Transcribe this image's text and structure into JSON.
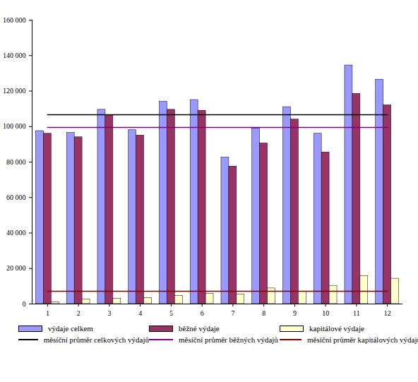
{
  "chart_data": {
    "type": "bar",
    "categories": [
      "1",
      "2",
      "3",
      "4",
      "5",
      "6",
      "7",
      "8",
      "9",
      "10",
      "11",
      "12"
    ],
    "series": [
      {
        "name": "výdaje celkem",
        "type": "bar",
        "color": "#9999ff",
        "values": [
          97500,
          96500,
          109500,
          98000,
          114000,
          115000,
          82500,
          99000,
          111000,
          96000,
          134500,
          126500
        ]
      },
      {
        "name": "běžné výdaje",
        "type": "bar",
        "color": "#993366",
        "values": [
          96000,
          94000,
          106500,
          95000,
          109500,
          109000,
          77500,
          90500,
          104000,
          85500,
          118500,
          112000
        ]
      },
      {
        "name": "kapitálové výdaje",
        "type": "bar",
        "color": "#ffffcc",
        "values": [
          1000,
          2500,
          3000,
          3300,
          4500,
          5800,
          5300,
          8800,
          7000,
          10300,
          15800,
          14300
        ]
      },
      {
        "name": "měsíční průměr celkových výdajů",
        "type": "line",
        "color": "#000000",
        "values": [
          106700,
          106700,
          106700,
          106700,
          106700,
          106700,
          106700,
          106700,
          106700,
          106700,
          106700,
          106700
        ]
      },
      {
        "name": "měsíční průměr běžných výdajů",
        "type": "line",
        "color": "#800080",
        "values": [
          99500,
          99500,
          99500,
          99500,
          99500,
          99500,
          99500,
          99500,
          99500,
          99500,
          99500,
          99500
        ]
      },
      {
        "name": "měsíční průměr kapitálových výdajů",
        "type": "line",
        "color": "#800000",
        "values": [
          7200,
          7200,
          7200,
          7200,
          7200,
          7200,
          7200,
          7200,
          7200,
          7200,
          7200,
          7200
        ]
      }
    ],
    "ylim": [
      0,
      160000
    ],
    "yticks": [
      0,
      {
        "value": 20000,
        "label": "20 000"
      },
      {
        "value": 40000,
        "label": "40 000"
      },
      {
        "value": 60000,
        "label": "60 000"
      },
      {
        "value": 80000,
        "label": "80 000"
      },
      {
        "value": 100000,
        "label": "100 000"
      },
      {
        "value": 120000,
        "label": "120 000"
      },
      {
        "value": 140000,
        "label": "140 000"
      },
      {
        "value": 160000,
        "label": "160 000"
      }
    ],
    "grid": false,
    "legend": "bottom"
  }
}
